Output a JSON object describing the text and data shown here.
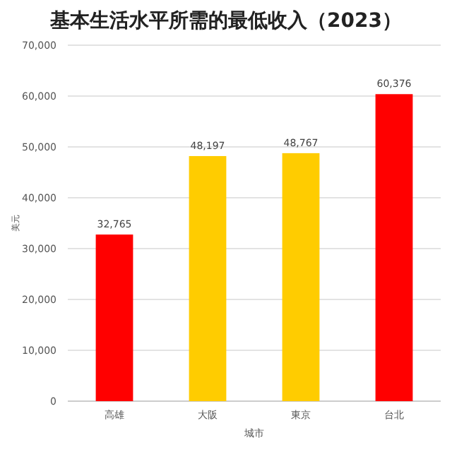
{
  "chart_data": {
    "type": "bar",
    "title": "基本生活水平所需的最低收入（2023）",
    "xlabel": "城市",
    "ylabel": "美元",
    "categories": [
      "高雄",
      "大阪",
      "東京",
      "台北"
    ],
    "values": [
      32765,
      48197,
      48767,
      60376
    ],
    "colors": [
      "#ff0000",
      "#ffcc00",
      "#ffcc00",
      "#ff0000"
    ],
    "ylim": [
      0,
      70000
    ],
    "yticks": [
      0,
      {
        "value": 10000,
        "label": "10,000"
      },
      {
        "value": 20000,
        "label": "20,000"
      },
      {
        "value": 30000,
        "label": "30,000"
      },
      {
        "value": 40000,
        "label": "40,000"
      },
      {
        "value": 50000,
        "label": "50,000"
      },
      {
        "value": 60000,
        "label": "60,000"
      },
      {
        "value": 70000,
        "label": "70,000"
      }
    ],
    "grid": "y",
    "value_labels": [
      "32,765",
      "48,197",
      "48,767",
      "60,376"
    ]
  }
}
